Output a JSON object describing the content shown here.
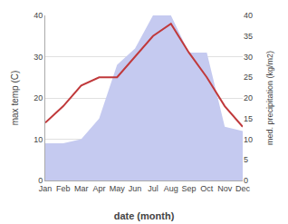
{
  "chart_data": {
    "type": "line",
    "categories": [
      "Jan",
      "Feb",
      "Mar",
      "Apr",
      "May",
      "Jun",
      "Jul",
      "Aug",
      "Sep",
      "Oct",
      "Nov",
      "Dec"
    ],
    "xlabel": "date (month)",
    "ylabel": "max temp (C)",
    "y2label": "med. precipitation (kg/m2)",
    "series": [
      {
        "type": "line",
        "color": "#c0393b",
        "values": [
          14,
          18,
          23,
          25,
          25,
          30,
          35,
          38,
          31,
          25,
          18,
          13
        ]
      },
      {
        "type": "area",
        "color": "#c5caf0",
        "axis": "y2",
        "values": [
          9,
          9,
          10,
          15,
          28,
          32,
          40,
          40,
          31,
          31,
          13,
          12
        ]
      }
    ],
    "ylim": [
      0,
      40
    ],
    "yticks": [
      0,
      10,
      20,
      30,
      40
    ],
    "y2lim": [
      0,
      40
    ],
    "y2ticks": [
      0,
      5,
      10,
      15,
      20,
      25,
      30,
      35,
      40
    ],
    "grid": true
  }
}
